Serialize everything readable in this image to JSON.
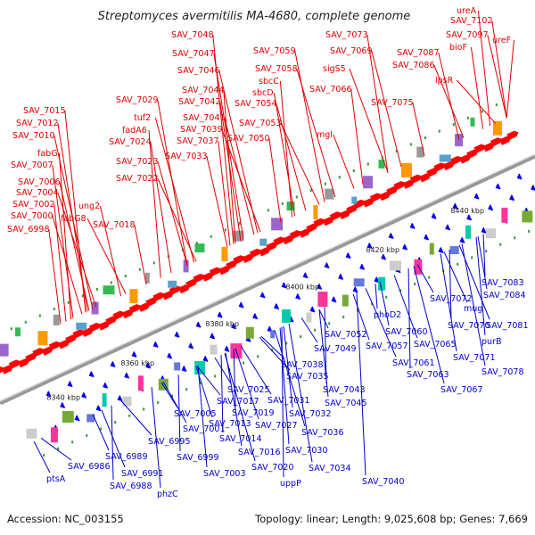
{
  "title": "Streptomyces avermitilis MA-4680, complete genome",
  "footer": {
    "accession": "Accession: NC_003155",
    "summary": "Topology: linear; Length: 9,025,608 bp; Genes: 7,669"
  },
  "colors": {
    "forward_label": "#e00000",
    "reverse_label": "#0000cc",
    "forward_gene": "#ff0000",
    "reverse_gene": "#0000ee",
    "axis": "#999999"
  },
  "ticks": [
    "8340 kbp",
    "8360 kbp",
    "8380 kbp",
    "8400 kbp",
    "8420 kbp",
    "8440 kbp"
  ],
  "forward_labels": [
    "ureA",
    "SAV_7102",
    "SAV_7097",
    "ureF",
    "bioF",
    "SAV_7087",
    "SAV_7086",
    "lpsR",
    "SAV_7075",
    "SAV_7073",
    "SAV_7069",
    "sigS5",
    "SAV_7066",
    "mgl",
    "SAV_7059",
    "SAV_7058",
    "sbcC",
    "sbcD",
    "SAV_7054",
    "SAV_7053",
    "SAV_7050",
    "SAV_7048",
    "SAV_7047",
    "SAV_7046",
    "SAV_7044",
    "SAV_7042",
    "SAV_7041",
    "SAV_7039",
    "SAV_7037",
    "SAV_7033",
    "SAV_7029",
    "tuf2",
    "fadA6",
    "SAV_7024",
    "SAV_7023",
    "SAV_7022",
    "SAV_7018",
    "SAV_7015",
    "SAV_7012",
    "SAV_7010",
    "fabG",
    "SAV_7007",
    "SAV_7006",
    "SAV_7004",
    "SAV_7002",
    "ung2",
    "SAV_7000",
    "fabG8",
    "SAV_6998"
  ],
  "reverse_labels": [
    "SAV_7083",
    "SAV_7084",
    "SAV_7072",
    "mug",
    "SAV_7081",
    "SAV_7070",
    "purB",
    "SAV_7071",
    "SAV_7078",
    "SAV_7067",
    "phoD2",
    "SAV_7060",
    "SAV_7057",
    "SAV_7065",
    "SAV_7061",
    "SAV_7063",
    "SAV_7052",
    "SAV_7049",
    "SAV_7038",
    "SAV_7035",
    "SAV_7043",
    "SAV_7045",
    "SAV_7025",
    "SAV_7017",
    "SAV_7031",
    "SAV_7019",
    "SAV_7032",
    "SAV_7013",
    "SAV_7027",
    "SAV_7036",
    "SAV_7014",
    "SAV_7030",
    "SAV_7016",
    "SAV_7034",
    "SAV_7020",
    "uppP",
    "SAV_7040",
    "SAV_7005",
    "SAV_7001",
    "SAV_6995",
    "SAV_6999",
    "SAV_7003",
    "SAV_6989",
    "SAV_6991",
    "SAV_6986",
    "SAV_6988",
    "phzC",
    "ptsA"
  ]
}
